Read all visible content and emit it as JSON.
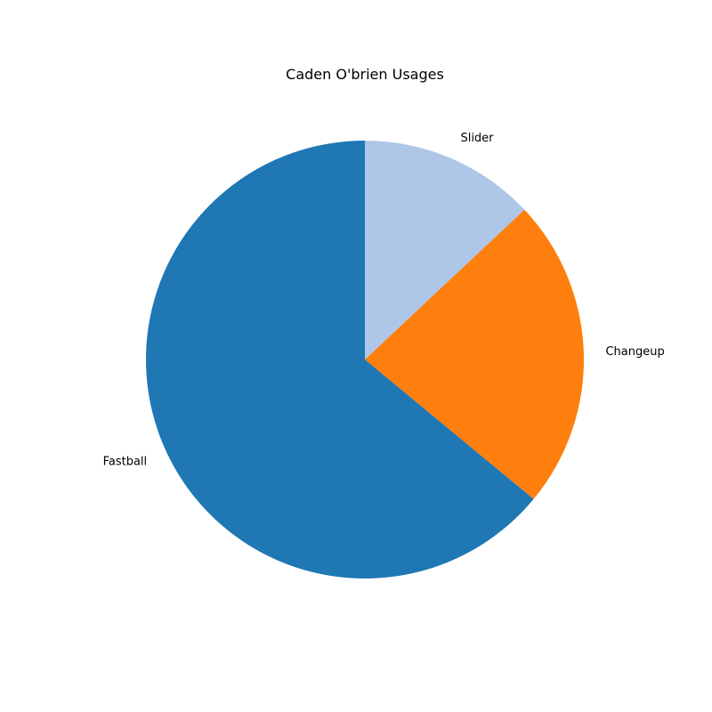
{
  "chart_data": {
    "type": "pie",
    "title": "Caden O'brien Usages",
    "categories": [
      "Slider",
      "Changeup",
      "Fastball"
    ],
    "values": [
      13,
      23,
      64
    ],
    "colors": [
      "#aec7e8",
      "#ff7f0e",
      "#1f77b4"
    ],
    "start_angle_deg": 90,
    "direction": "clockwise",
    "legend": "none"
  }
}
